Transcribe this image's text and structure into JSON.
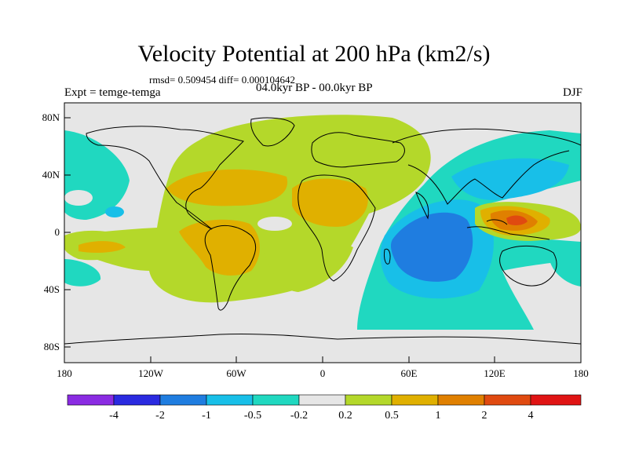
{
  "title": "Velocity Potential at 200 hPa (km2/s)",
  "stats": "rmsd= 0.509454 diff= 0.000104642",
  "experiment": "Expt = temge-temga",
  "period": "04.0kyr BP - 00.0kyr BP",
  "season": "DJF",
  "y_axis_labels": [
    "80N",
    "40N",
    "0",
    "40S",
    "80S"
  ],
  "x_axis_labels": [
    "180",
    "120W",
    "60W",
    "0",
    "60E",
    "120E",
    "180"
  ],
  "colorbar": {
    "colors": [
      "#8a2be2",
      "#2a2ae0",
      "#1f7de0",
      "#18bfe8",
      "#20d8c0",
      "#e6e6e6",
      "#b4d82a",
      "#e0b000",
      "#e08000",
      "#e04a10",
      "#e01414"
    ],
    "labels": [
      "-4",
      "-2",
      "-1",
      "-0.5",
      "-0.2",
      "0.2",
      "0.5",
      "1",
      "2",
      "4"
    ]
  },
  "colors": {
    "neutral": "#e6e6e6",
    "pos1": "#b4d82a",
    "pos2": "#e0b000",
    "pos3": "#e08000",
    "pos4": "#e04a10",
    "neg1": "#20d8c0",
    "neg2": "#18bfe8",
    "neg3": "#1f7de0",
    "coast": "#000000"
  }
}
